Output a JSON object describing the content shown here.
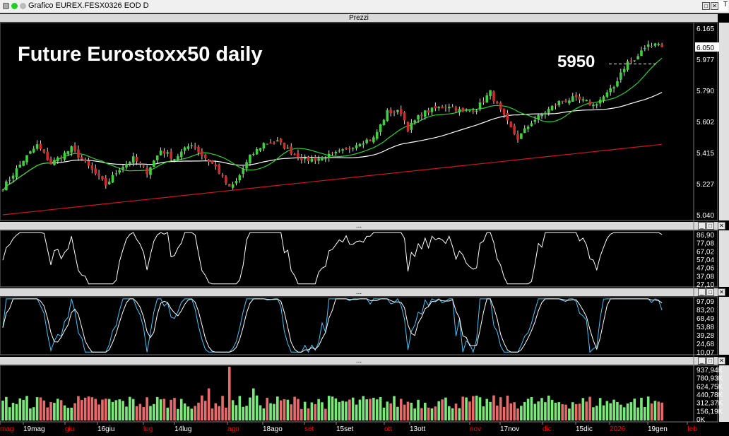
{
  "window": {
    "title": "Grafico EUREX.FESX0326 EOD D",
    "right_tab": "T",
    "panel_price_title": "Prezzi",
    "panel_sub_title": "..."
  },
  "chart_data": [
    {
      "type": "candlestick",
      "title": "Future Eurostoxx50 daily",
      "annotation": "5950",
      "annotation_level": 5950,
      "last_price": "6.050",
      "last_price_value": 6050,
      "y_ticks": [
        "6.165",
        "5.977",
        "5.790",
        "5.602",
        "5.415",
        "5.227",
        "5.040"
      ],
      "ylim": [
        5040,
        6165
      ],
      "colors": {
        "up": "#3fd03f",
        "down": "#d02a2a",
        "ma_fast": "#33cc33",
        "ma_mid": "#ffffff",
        "ma_slow": "#d01818"
      },
      "x_labels": [
        "mag",
        "19mag",
        "giu",
        "16giu",
        "lug",
        "14lug",
        "ago",
        "18ago",
        "set",
        "15set",
        "ott",
        "13ott",
        "nov",
        "17nov",
        "dic",
        "15dic",
        "2026",
        "19gen",
        "feb"
      ],
      "x_label_colors": [
        "#ff0000",
        "#ffffff",
        "#ff0000",
        "#ffffff",
        "#ff0000",
        "#ffffff",
        "#ff0000",
        "#ffffff",
        "#ff0000",
        "#ffffff",
        "#ff0000",
        "#ffffff",
        "#ff0000",
        "#ffffff",
        "#ff0000",
        "#ffffff",
        "#ff0000",
        "#ffffff",
        "#ff0000"
      ],
      "anchors": [
        [
          0,
          5200
        ],
        [
          6,
          5370
        ],
        [
          10,
          5460
        ],
        [
          14,
          5350
        ],
        [
          20,
          5440
        ],
        [
          25,
          5330
        ],
        [
          30,
          5220
        ],
        [
          34,
          5320
        ],
        [
          38,
          5380
        ],
        [
          42,
          5300
        ],
        [
          46,
          5430
        ],
        [
          50,
          5380
        ],
        [
          55,
          5470
        ],
        [
          58,
          5400
        ],
        [
          62,
          5330
        ],
        [
          66,
          5200
        ],
        [
          68,
          5240
        ],
        [
          72,
          5390
        ],
        [
          76,
          5470
        ],
        [
          80,
          5480
        ],
        [
          84,
          5420
        ],
        [
          88,
          5370
        ],
        [
          92,
          5380
        ],
        [
          96,
          5400
        ],
        [
          100,
          5430
        ],
        [
          104,
          5480
        ],
        [
          108,
          5500
        ],
        [
          112,
          5660
        ],
        [
          116,
          5660
        ],
        [
          118,
          5560
        ],
        [
          122,
          5650
        ],
        [
          126,
          5680
        ],
        [
          130,
          5700
        ],
        [
          134,
          5660
        ],
        [
          138,
          5680
        ],
        [
          142,
          5780
        ],
        [
          144,
          5700
        ],
        [
          148,
          5560
        ],
        [
          150,
          5500
        ],
        [
          152,
          5550
        ],
        [
          154,
          5600
        ],
        [
          158,
          5660
        ],
        [
          162,
          5720
        ],
        [
          166,
          5740
        ],
        [
          170,
          5720
        ],
        [
          172,
          5700
        ],
        [
          176,
          5770
        ],
        [
          178,
          5810
        ],
        [
          180,
          5900
        ],
        [
          182,
          5960
        ],
        [
          184,
          5970
        ],
        [
          187,
          6050
        ],
        [
          190,
          6080
        ],
        [
          192,
          6060
        ]
      ],
      "volume_ticks": [
        "937,94K",
        "780,93K",
        "624,75K",
        "440,78K",
        "312,37K",
        "156,19K",
        "0K"
      ],
      "volume_max": 937.94
    },
    {
      "type": "line",
      "name": "oscillator",
      "y_ticks": [
        "86,90",
        "77,08",
        "67,02",
        "57,04",
        "47,06",
        "37,08",
        "27,10"
      ],
      "ylim": [
        24,
        91
      ]
    },
    {
      "type": "line",
      "name": "stochastic",
      "y_ticks": [
        "97,09",
        "83,20",
        "68,49",
        "53,88",
        "39,28",
        "24,68",
        "10,07"
      ],
      "ylim": [
        8,
        98
      ]
    }
  ]
}
